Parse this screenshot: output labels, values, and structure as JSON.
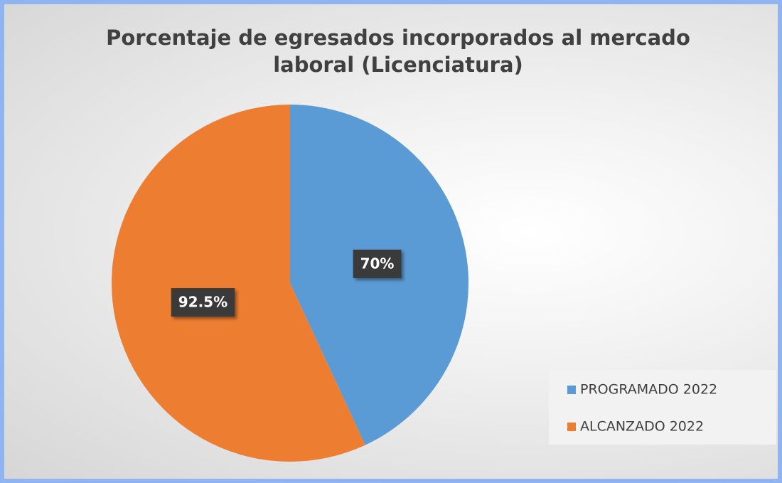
{
  "chart_data": {
    "type": "pie",
    "title": "Porcentaje de egresados incorporados al mercado laboral (Licenciatura)",
    "categories": [
      "PROGRAMADO 2022",
      "ALCANZADO 2022"
    ],
    "values": [
      70,
      92.5
    ],
    "value_labels": [
      "70%",
      "92.5%"
    ],
    "colors": [
      "#5b9bd5",
      "#ed7d31"
    ],
    "legend": "right"
  }
}
